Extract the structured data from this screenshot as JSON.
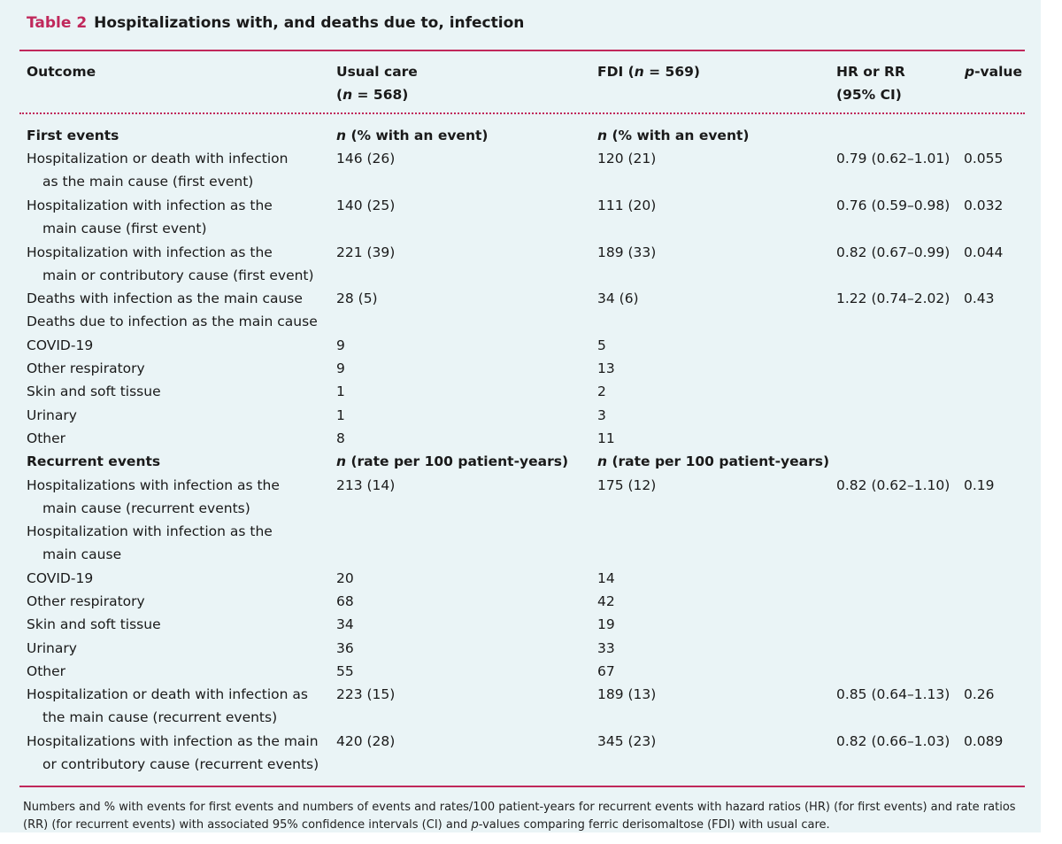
{
  "table": {
    "label": "Table 2",
    "title": "Hospitalizations with, and deaths due to, infection",
    "headers": {
      "outcome": "Outcome",
      "usual_care": "Usual care",
      "usual_care_n": "(n = 568)",
      "fdi": "FDI (n = 569)",
      "hr_rr": "HR or RR",
      "ci": "(95% CI)",
      "p_value": "p-value"
    },
    "rows": [
      {
        "kind": "section",
        "outcome": [
          "First events"
        ],
        "usual": "n (% with an event)",
        "fdi": "n (% with an event)",
        "hr": "",
        "p": ""
      },
      {
        "kind": "data",
        "outcome": [
          "Hospitalization or death with infection",
          "as the main cause (first event)"
        ],
        "usual": "146 (26)",
        "fdi": "120 (21)",
        "hr": "0.79 (0.62–1.01)",
        "p": "0.055"
      },
      {
        "kind": "data",
        "outcome": [
          "Hospitalization with infection as the",
          "main cause (first event)"
        ],
        "usual": "140 (25)",
        "fdi": "111 (20)",
        "hr": "0.76 (0.59–0.98)",
        "p": "0.032"
      },
      {
        "kind": "data",
        "outcome": [
          "Hospitalization with infection as the",
          "main or contributory cause (first event)"
        ],
        "usual": "221 (39)",
        "fdi": "189 (33)",
        "hr": "0.82 (0.67–0.99)",
        "p": "0.044"
      },
      {
        "kind": "data",
        "outcome": [
          "Deaths with infection as the main cause"
        ],
        "usual": "28 (5)",
        "fdi": "34 (6)",
        "hr": "1.22 (0.74–2.02)",
        "p": "0.43"
      },
      {
        "kind": "data",
        "outcome": [
          "Deaths due to infection as the main cause"
        ],
        "usual": "",
        "fdi": "",
        "hr": "",
        "p": ""
      },
      {
        "kind": "data",
        "outcome": [
          "COVID-19"
        ],
        "usual": "9",
        "fdi": "5",
        "hr": "",
        "p": ""
      },
      {
        "kind": "data",
        "outcome": [
          "Other respiratory"
        ],
        "usual": "9",
        "fdi": "13",
        "hr": "",
        "p": ""
      },
      {
        "kind": "data",
        "outcome": [
          "Skin and soft tissue"
        ],
        "usual": "1",
        "fdi": "2",
        "hr": "",
        "p": ""
      },
      {
        "kind": "data",
        "outcome": [
          "Urinary"
        ],
        "usual": "1",
        "fdi": "3",
        "hr": "",
        "p": ""
      },
      {
        "kind": "data",
        "outcome": [
          "Other"
        ],
        "usual": "8",
        "fdi": "11",
        "hr": "",
        "p": ""
      },
      {
        "kind": "section",
        "outcome": [
          "Recurrent events"
        ],
        "usual": "n (rate per 100 patient-years)",
        "fdi": "n (rate per 100 patient-years)",
        "hr": "",
        "p": ""
      },
      {
        "kind": "data",
        "outcome": [
          "Hospitalizations with infection as the",
          "main cause (recurrent events)"
        ],
        "usual": "213 (14)",
        "fdi": "175 (12)",
        "hr": "0.82 (0.62–1.10)",
        "p": "0.19"
      },
      {
        "kind": "data",
        "outcome": [
          "Hospitalization with infection as the",
          "main cause"
        ],
        "usual": "",
        "fdi": "",
        "hr": "",
        "p": ""
      },
      {
        "kind": "data",
        "outcome": [
          "COVID-19"
        ],
        "usual": "20",
        "fdi": "14",
        "hr": "",
        "p": ""
      },
      {
        "kind": "data",
        "outcome": [
          "Other respiratory"
        ],
        "usual": "68",
        "fdi": "42",
        "hr": "",
        "p": ""
      },
      {
        "kind": "data",
        "outcome": [
          "Skin and soft tissue"
        ],
        "usual": "34",
        "fdi": "19",
        "hr": "",
        "p": ""
      },
      {
        "kind": "data",
        "outcome": [
          "Urinary"
        ],
        "usual": "36",
        "fdi": "33",
        "hr": "",
        "p": ""
      },
      {
        "kind": "data",
        "outcome": [
          "Other"
        ],
        "usual": "55",
        "fdi": "67",
        "hr": "",
        "p": ""
      },
      {
        "kind": "data",
        "outcome": [
          "Hospitalization or death with infection as",
          "the main cause (recurrent events)"
        ],
        "usual": "223 (15)",
        "fdi": "189 (13)",
        "hr": "0.85 (0.64–1.13)",
        "p": "0.26"
      },
      {
        "kind": "data",
        "outcome": [
          "Hospitalizations with infection as the main",
          "or contributory cause (recurrent events)"
        ],
        "usual": "420 (28)",
        "fdi": "345 (23)",
        "hr": "0.82 (0.66–1.03)",
        "p": "0.089"
      }
    ],
    "footnote": "Numbers and % with events for first events and numbers of events and rates/100 patient-years for recurrent events with hazard ratios (HR) (for first events) and rate ratios (RR) (for recurrent events) with associated 95% confidence intervals (CI) and p-values comparing ferric derisomaltose (FDI) with usual care."
  },
  "colors": {
    "accent": "#c0285b",
    "background": "#eaf4f6"
  }
}
